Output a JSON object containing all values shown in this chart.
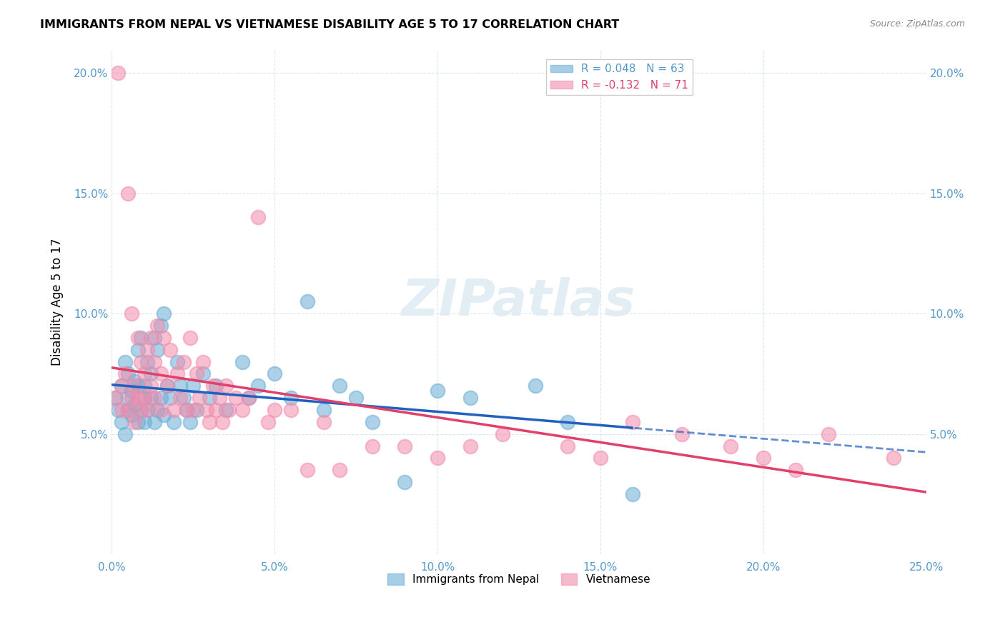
{
  "title": "IMMIGRANTS FROM NEPAL VS VIETNAMESE DISABILITY AGE 5 TO 17 CORRELATION CHART",
  "source": "Source: ZipAtlas.com",
  "ylabel": "Disability Age 5 to 17",
  "xlabel": "",
  "xlim": [
    0.0,
    0.25
  ],
  "ylim": [
    0.0,
    0.21
  ],
  "xticks": [
    0.0,
    0.05,
    0.1,
    0.15,
    0.2,
    0.25
  ],
  "yticks": [
    0.0,
    0.05,
    0.1,
    0.15,
    0.2
  ],
  "xticklabels": [
    "0.0%",
    "5.0%",
    "10.0%",
    "15.0%",
    "20.0%",
    "25.0%"
  ],
  "yticklabels": [
    "",
    "5.0%",
    "10.0%",
    "15.0%",
    "20.0%"
  ],
  "right_yticklabels": [
    "",
    "5.0%",
    "10.0%",
    "15.0%",
    "20.0%"
  ],
  "nepal_color": "#6baed6",
  "vietnamese_color": "#f28bab",
  "nepal_R": 0.048,
  "nepal_N": 63,
  "vietnamese_R": -0.132,
  "vietnamese_N": 71,
  "legend_label_nepal": "Immigrants from Nepal",
  "legend_label_vietnamese": "Vietnamese",
  "watermark": "ZIPatlas",
  "nepal_scatter_x": [
    0.001,
    0.002,
    0.003,
    0.003,
    0.004,
    0.004,
    0.005,
    0.005,
    0.005,
    0.006,
    0.006,
    0.007,
    0.007,
    0.008,
    0.008,
    0.008,
    0.009,
    0.009,
    0.01,
    0.01,
    0.01,
    0.011,
    0.011,
    0.012,
    0.012,
    0.013,
    0.013,
    0.014,
    0.014,
    0.015,
    0.015,
    0.016,
    0.016,
    0.017,
    0.018,
    0.019,
    0.02,
    0.021,
    0.022,
    0.023,
    0.024,
    0.025,
    0.026,
    0.028,
    0.03,
    0.032,
    0.035,
    0.04,
    0.042,
    0.045,
    0.05,
    0.055,
    0.06,
    0.065,
    0.07,
    0.075,
    0.08,
    0.09,
    0.1,
    0.11,
    0.13,
    0.14,
    0.16
  ],
  "nepal_scatter_y": [
    0.065,
    0.06,
    0.07,
    0.055,
    0.08,
    0.05,
    0.075,
    0.06,
    0.065,
    0.068,
    0.058,
    0.072,
    0.062,
    0.085,
    0.055,
    0.07,
    0.09,
    0.06,
    0.065,
    0.055,
    0.07,
    0.08,
    0.06,
    0.075,
    0.065,
    0.09,
    0.055,
    0.085,
    0.06,
    0.095,
    0.065,
    0.1,
    0.058,
    0.07,
    0.065,
    0.055,
    0.08,
    0.07,
    0.065,
    0.06,
    0.055,
    0.07,
    0.06,
    0.075,
    0.065,
    0.07,
    0.06,
    0.08,
    0.065,
    0.07,
    0.075,
    0.065,
    0.105,
    0.06,
    0.07,
    0.065,
    0.055,
    0.03,
    0.068,
    0.065,
    0.07,
    0.055,
    0.025
  ],
  "vietnamese_scatter_x": [
    0.001,
    0.002,
    0.003,
    0.003,
    0.004,
    0.005,
    0.005,
    0.006,
    0.006,
    0.007,
    0.007,
    0.008,
    0.008,
    0.009,
    0.009,
    0.01,
    0.01,
    0.011,
    0.011,
    0.012,
    0.012,
    0.013,
    0.013,
    0.014,
    0.015,
    0.015,
    0.016,
    0.017,
    0.018,
    0.019,
    0.02,
    0.021,
    0.022,
    0.023,
    0.024,
    0.025,
    0.026,
    0.027,
    0.028,
    0.029,
    0.03,
    0.031,
    0.032,
    0.033,
    0.034,
    0.035,
    0.036,
    0.038,
    0.04,
    0.042,
    0.045,
    0.048,
    0.05,
    0.055,
    0.06,
    0.065,
    0.07,
    0.08,
    0.09,
    0.1,
    0.11,
    0.12,
    0.14,
    0.15,
    0.16,
    0.175,
    0.19,
    0.2,
    0.21,
    0.22,
    0.24
  ],
  "vietnamese_scatter_y": [
    0.065,
    0.2,
    0.06,
    0.07,
    0.075,
    0.15,
    0.06,
    0.065,
    0.1,
    0.07,
    0.055,
    0.09,
    0.065,
    0.08,
    0.06,
    0.075,
    0.065,
    0.085,
    0.06,
    0.09,
    0.07,
    0.08,
    0.065,
    0.095,
    0.075,
    0.06,
    0.09,
    0.07,
    0.085,
    0.06,
    0.075,
    0.065,
    0.08,
    0.06,
    0.09,
    0.06,
    0.075,
    0.065,
    0.08,
    0.06,
    0.055,
    0.07,
    0.06,
    0.065,
    0.055,
    0.07,
    0.06,
    0.065,
    0.06,
    0.065,
    0.14,
    0.055,
    0.06,
    0.06,
    0.035,
    0.055,
    0.035,
    0.045,
    0.045,
    0.04,
    0.045,
    0.05,
    0.045,
    0.04,
    0.055,
    0.05,
    0.045,
    0.04,
    0.035,
    0.05,
    0.04
  ]
}
